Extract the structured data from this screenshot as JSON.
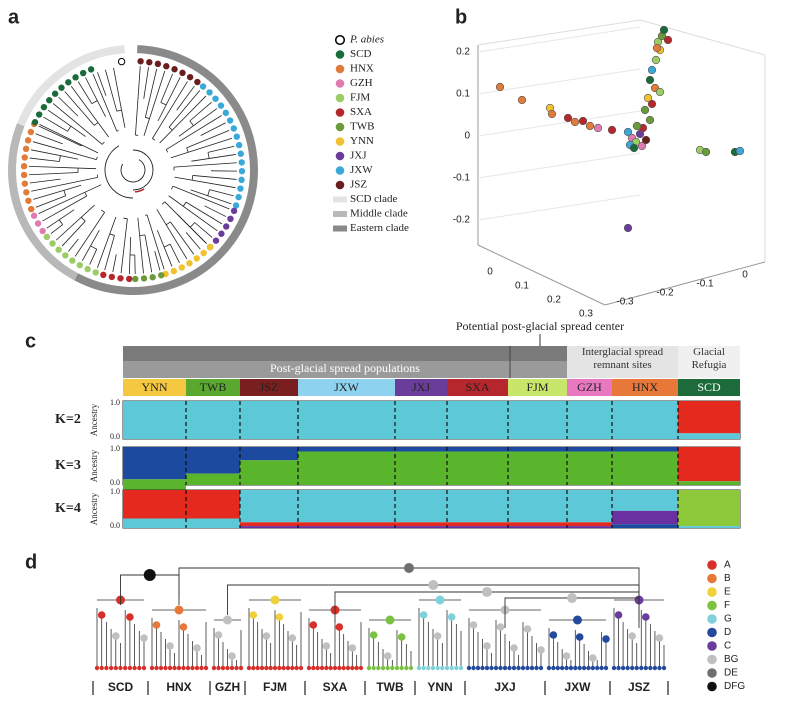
{
  "panel_a": {
    "label": "a",
    "legend": [
      {
        "name": "P. abies",
        "color": "#ffffff"
      },
      {
        "name": "SCD",
        "color": "#1a6b3a"
      },
      {
        "name": "HNX",
        "color": "#e07b39"
      },
      {
        "name": "GZH",
        "color": "#e07bb0"
      },
      {
        "name": "FJM",
        "color": "#9ccc65"
      },
      {
        "name": "SXA",
        "color": "#b5272d"
      },
      {
        "name": "TWB",
        "color": "#6a9a3a"
      },
      {
        "name": "YNN",
        "color": "#f2c12e"
      },
      {
        "name": "JXJ",
        "color": "#6a3d9a"
      },
      {
        "name": "JXW",
        "color": "#3aa8d8"
      },
      {
        "name": "JSZ",
        "color": "#6b1d1d"
      }
    ],
    "clade_legend": [
      {
        "name": "SCD clade",
        "color": "#e3e3e3"
      },
      {
        "name": "Middle clade",
        "color": "#b8b8b8"
      },
      {
        "name": "Eastern clade",
        "color": "#8a8a8a"
      }
    ]
  },
  "panel_b": {
    "label": "b",
    "z_ticks": [
      "0.2",
      "0.1",
      "0",
      "-0.1",
      "-0.2"
    ],
    "x_ticks": [
      "0",
      "0.1",
      "0.2",
      "0.3"
    ],
    "y_ticks": [
      "-0.3",
      "-0.2",
      "-0.1",
      "0"
    ]
  },
  "panel_c": {
    "label": "c",
    "center_note": "Potential post-glacial spread center",
    "groups": [
      "Post-glacial spread populations",
      "Interglacial spread remnant sites",
      "Glacial Refugia"
    ],
    "populations": [
      {
        "name": "YNN",
        "color": "#f5c842"
      },
      {
        "name": "TWB",
        "color": "#5aa830"
      },
      {
        "name": "JSZ",
        "color": "#7a1f1f"
      },
      {
        "name": "JXW",
        "color": "#8dd3f0"
      },
      {
        "name": "JXJ",
        "color": "#6a3d9a"
      },
      {
        "name": "SXA",
        "color": "#b5272d"
      },
      {
        "name": "FJM",
        "color": "#c8e66a"
      },
      {
        "name": "GZH",
        "color": "#e879c0"
      },
      {
        "name": "HNX",
        "color": "#e8773a"
      },
      {
        "name": "SCD",
        "color": "#1d6b3a"
      }
    ],
    "rows": [
      {
        "label": "K=2",
        "axis_label": "Ancestry",
        "ticks": [
          "1.0",
          "0.0"
        ]
      },
      {
        "label": "K=3",
        "axis_label": "Ancestry",
        "ticks": [
          "1.0",
          "0.0"
        ]
      },
      {
        "label": "K=4",
        "axis_label": "Ancestry",
        "ticks": [
          "1.0",
          "0.0"
        ]
      }
    ]
  },
  "panel_d": {
    "label": "d",
    "legend": [
      {
        "name": "A",
        "color": "#d7302b"
      },
      {
        "name": "B",
        "color": "#e8773a"
      },
      {
        "name": "E",
        "color": "#f2d03b"
      },
      {
        "name": "F",
        "color": "#7cc242"
      },
      {
        "name": "G",
        "color": "#7fd0d8"
      },
      {
        "name": "D",
        "color": "#234a9c"
      },
      {
        "name": "C",
        "color": "#6a3d9a"
      },
      {
        "name": "BG",
        "color": "#c0c0c0"
      },
      {
        "name": "DE",
        "color": "#6f6f6f"
      },
      {
        "name": "DFG",
        "color": "#111111"
      }
    ],
    "populations": [
      "SCD",
      "HNX",
      "GZH",
      "FJM",
      "SXA",
      "TWB",
      "YNN",
      "JXJ",
      "JXW",
      "JSZ"
    ]
  }
}
